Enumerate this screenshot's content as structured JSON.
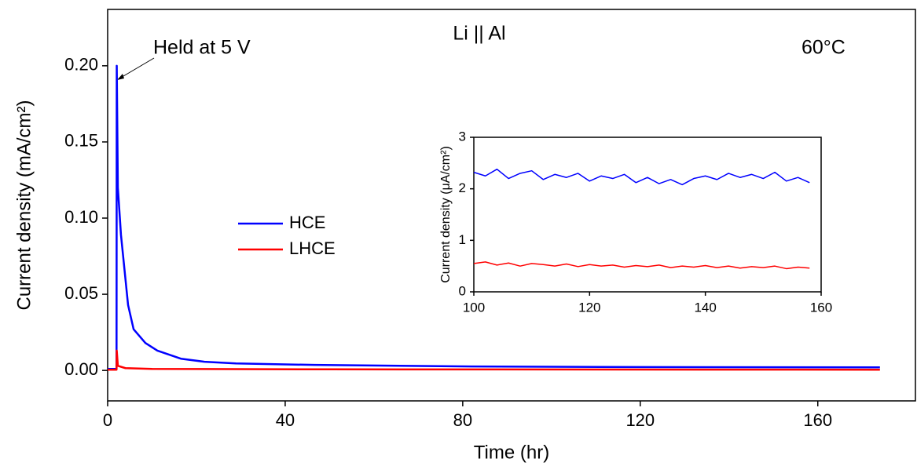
{
  "chart_data": [
    {
      "type": "line",
      "title": "Li || Al",
      "annotations": [
        "Held at 5 V",
        "60°C"
      ],
      "x_label": "Time (hr)",
      "y_label": "Current density (mA/cm²)",
      "xlim": [
        0,
        182
      ],
      "ylim": [
        -0.02,
        0.237
      ],
      "xticks": [
        0,
        40,
        80,
        120,
        160
      ],
      "yticks": [
        {
          "value": 0,
          "label": "0.00"
        },
        {
          "value": 0.05,
          "label": "0.05"
        },
        {
          "value": 0.1,
          "label": "0.10"
        },
        {
          "value": 0.15,
          "label": "0.15"
        },
        {
          "value": 0.2,
          "label": "0.20"
        }
      ],
      "legend": "center",
      "series": [
        {
          "name": "HCE",
          "color": "#0000ff",
          "x": [
            0,
            2,
            2.05,
            2.3,
            3,
            4.6,
            5.85,
            8.5,
            11.2,
            16.5,
            21.8,
            28.9,
            46.6,
            82,
            120,
            174
          ],
          "values": [
            0.001,
            0.001,
            0.2,
            0.12,
            0.089,
            0.043,
            0.027,
            0.018,
            0.013,
            0.0077,
            0.0057,
            0.0046,
            0.0036,
            0.0026,
            0.0022,
            0.002
          ]
        },
        {
          "name": "LHCE",
          "color": "#ff0000",
          "x": [
            0,
            2,
            2.05,
            2.3,
            4,
            10,
            50,
            174
          ],
          "values": [
            0.0005,
            0.0005,
            0.013,
            0.003,
            0.0015,
            0.001,
            0.0007,
            0.0005
          ]
        }
      ]
    },
    {
      "type": "line",
      "y_label": "Current density (μA/cm²)",
      "xlim": [
        100,
        160
      ],
      "ylim": [
        0,
        3
      ],
      "xticks": [
        100,
        120,
        140,
        160
      ],
      "yticks": [
        0,
        1,
        2,
        3
      ],
      "series": [
        {
          "color": "#0000ff",
          "x": [
            100,
            102,
            104,
            106,
            108,
            110,
            112,
            114,
            116,
            118,
            120,
            122,
            124,
            126,
            128,
            130,
            132,
            134,
            136,
            138,
            140,
            142,
            144,
            146,
            148,
            150,
            152,
            154,
            156,
            158
          ],
          "values": [
            2.32,
            2.25,
            2.38,
            2.2,
            2.3,
            2.35,
            2.18,
            2.28,
            2.22,
            2.3,
            2.15,
            2.25,
            2.2,
            2.28,
            2.12,
            2.22,
            2.1,
            2.18,
            2.08,
            2.2,
            2.25,
            2.18,
            2.3,
            2.22,
            2.28,
            2.2,
            2.32,
            2.15,
            2.22,
            2.12
          ]
        },
        {
          "color": "#ff0000",
          "x": [
            100,
            102,
            104,
            106,
            108,
            110,
            112,
            114,
            116,
            118,
            120,
            122,
            124,
            126,
            128,
            130,
            132,
            134,
            136,
            138,
            140,
            142,
            144,
            146,
            148,
            150,
            152,
            154,
            156,
            158
          ],
          "values": [
            0.55,
            0.58,
            0.52,
            0.56,
            0.5,
            0.55,
            0.53,
            0.5,
            0.54,
            0.49,
            0.53,
            0.5,
            0.52,
            0.48,
            0.51,
            0.49,
            0.52,
            0.47,
            0.5,
            0.48,
            0.51,
            0.47,
            0.5,
            0.46,
            0.49,
            0.47,
            0.5,
            0.45,
            0.48,
            0.46
          ]
        }
      ]
    }
  ]
}
